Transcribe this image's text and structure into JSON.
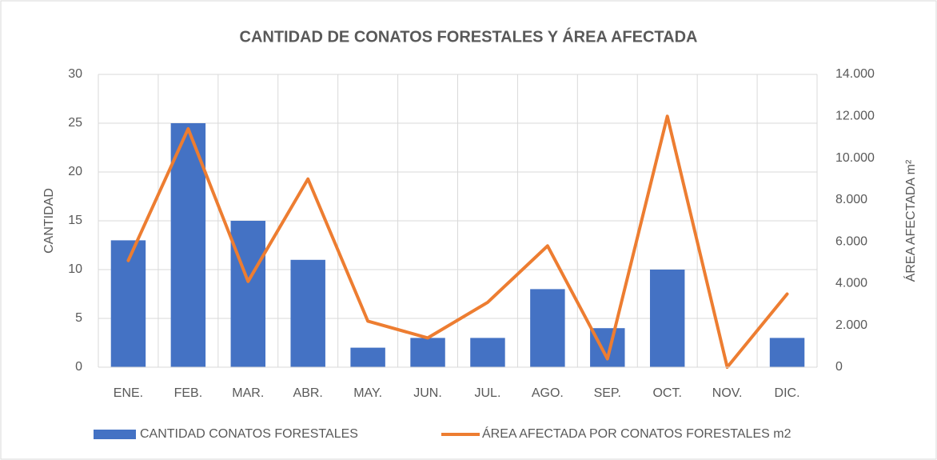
{
  "chart_data": {
    "type": "combo",
    "title": "CANTIDAD DE CONATOS FORESTALES Y ÁREA AFECTADA",
    "y_label": "CANTIDAD",
    "y2_label": "ÁREA AFECTADA m²",
    "categories": [
      "ENE.",
      "FEB.",
      "MAR.",
      "ABR.",
      "MAY.",
      "JUN.",
      "JUL.",
      "AGO.",
      "SEP.",
      "OCT.",
      "NOV.",
      "DIC."
    ],
    "series": [
      {
        "name": "CANTIDAD CONATOS FORESTALES",
        "type": "bar",
        "color": "#4472c4",
        "values": [
          13,
          25,
          15,
          11,
          2,
          3,
          3,
          8,
          4,
          10,
          0,
          3
        ]
      },
      {
        "name": "ÁREA AFECTADA POR CONATOS FORESTALES m2",
        "type": "line",
        "axis": "y2",
        "color": "#ed7d31",
        "values": [
          5100,
          11400,
          4100,
          9000,
          2200,
          1400,
          3100,
          5800,
          400,
          12000,
          0,
          3500
        ]
      }
    ],
    "ylim": [
      0,
      30
    ],
    "yticks": [
      0,
      5,
      10,
      15,
      20,
      25,
      30
    ],
    "y2lim": [
      0,
      14000
    ],
    "y2ticks": [
      0,
      {
        "value": 2000,
        "label": "2.000"
      },
      {
        "value": 4000,
        "label": "4.000"
      },
      {
        "value": 6000,
        "label": "6.000"
      },
      {
        "value": 8000,
        "label": "8.000"
      },
      {
        "value": 10000,
        "label": "10.000"
      },
      {
        "value": 12000,
        "label": "12.000"
      },
      {
        "value": 14000,
        "label": "14.000"
      }
    ],
    "grid": true,
    "legend": "bottom"
  }
}
